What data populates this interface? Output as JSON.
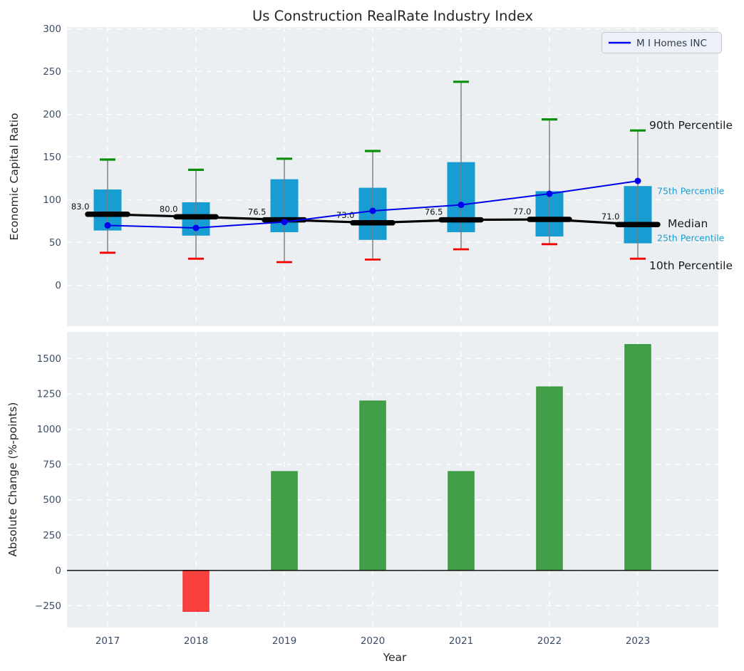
{
  "figure": {
    "title": "Us Construction RealRate Industry Index"
  },
  "colors": {
    "axes_bg": "#eceff1",
    "grid": "#ffffff",
    "box_fill": "#189dd3",
    "whisker": "#7a7a7a",
    "cap_high": "#0a8f0a",
    "cap_low": "#f50000",
    "median_line": "#000000",
    "company_line": "#0000ee",
    "bar_positive": "#41a047",
    "bar_positive_edge": "#389a3f",
    "bar_negative": "#f9403f",
    "bar_negative_edge": "#ee3a3a",
    "tick_label": "#3b4d66",
    "axis_label": "#262626",
    "annotation_black": "#1a1a1a",
    "annotation_cyan": "#18a0d4",
    "legend_bg": "#edf0f6",
    "legend_border": "#c3c8d2",
    "legend_text": "#2f3b4c",
    "zero_line": "#000000"
  },
  "chart_data": [
    {
      "type": "boxplot+line",
      "ylabel": "Economic Capital Ratio",
      "categories": [
        "2017",
        "2018",
        "2019",
        "2020",
        "2021",
        "2022",
        "2023"
      ],
      "yticks": [
        0,
        50,
        100,
        150,
        200,
        250,
        300
      ],
      "ylim": [
        -48,
        302
      ],
      "grid": true,
      "series": [
        {
          "name": "10th Percentile",
          "values": [
            38,
            31,
            27,
            30,
            42,
            48,
            31
          ]
        },
        {
          "name": "25th Percentile",
          "values": [
            64,
            58,
            62,
            53,
            62,
            57,
            49
          ]
        },
        {
          "name": "Median",
          "values": [
            83.0,
            80.0,
            76.5,
            73.0,
            76.5,
            77.0,
            71.0
          ]
        },
        {
          "name": "75th Percentile",
          "values": [
            112,
            97,
            124,
            114,
            144,
            110,
            116
          ]
        },
        {
          "name": "90th Percentile",
          "values": [
            147,
            135,
            148,
            157,
            238,
            194,
            181
          ]
        },
        {
          "name": "M I Homes INC",
          "values": [
            70,
            67,
            74,
            87,
            94,
            107,
            122
          ]
        }
      ],
      "median_labels": [
        "83.0",
        "80.0",
        "76.5",
        "73.0",
        "76.5",
        "77.0",
        "71.0"
      ],
      "annotations": [
        {
          "label": "90th Percentile",
          "value": 187,
          "style": "black"
        },
        {
          "label": "75th Percentile",
          "value": 110,
          "style": "cyan"
        },
        {
          "label": "Median",
          "value": 72,
          "style": "black"
        },
        {
          "label": "25th Percentile",
          "value": 55,
          "style": "cyan"
        },
        {
          "label": "10th Percentile",
          "value": 23,
          "style": "black"
        }
      ],
      "legend": {
        "label": "M I Homes INC",
        "position": "upper right"
      }
    },
    {
      "type": "bar",
      "ylabel": "Absolute Change (%-points)",
      "xlabel": "Year",
      "categories": [
        "2017",
        "2018",
        "2019",
        "2020",
        "2021",
        "2022",
        "2023"
      ],
      "values": [
        0,
        -290,
        700,
        1200,
        700,
        1300,
        1600
      ],
      "yticks": [
        -250,
        0,
        250,
        500,
        750,
        1000,
        1250,
        1500
      ],
      "ylim": [
        -405,
        1690
      ],
      "grid": true
    }
  ]
}
